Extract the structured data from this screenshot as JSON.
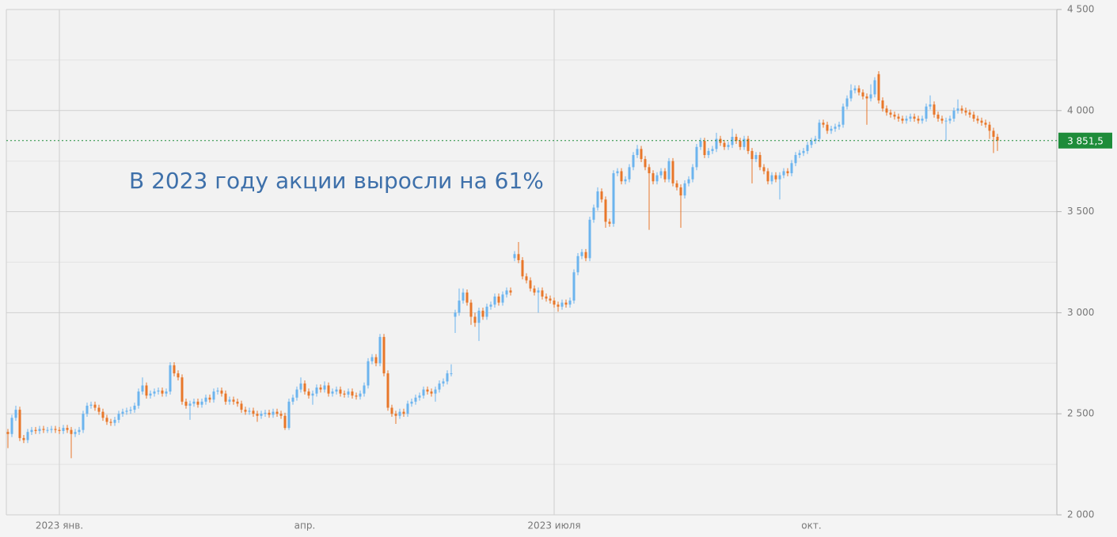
{
  "chart_data": {
    "type": "candlestick",
    "annotation": "В  2023 году акции выросли на 61%",
    "categories": [
      null,
      null,
      null,
      null,
      null,
      null,
      null,
      null,
      null,
      null,
      null,
      null,
      null,
      "2023 янв.",
      null,
      null,
      null,
      null,
      null,
      null,
      null,
      null,
      null,
      null,
      null,
      null,
      null,
      null,
      null,
      null,
      null,
      null,
      null,
      null,
      null,
      null,
      null,
      null,
      null,
      null,
      null,
      null,
      null,
      null,
      null,
      null,
      null,
      null,
      null,
      null,
      null,
      null,
      null,
      null,
      null,
      null,
      null,
      null,
      null,
      null,
      null,
      null,
      null,
      null,
      null,
      null,
      null,
      null,
      null,
      null,
      null,
      null,
      null,
      null,
      null,
      "апр.",
      null,
      null,
      null,
      null,
      null,
      null,
      null,
      null,
      null,
      null,
      null,
      null,
      null,
      null,
      null,
      null,
      null,
      null,
      null,
      null,
      null,
      null,
      null,
      null,
      null,
      null,
      null,
      null,
      null,
      null,
      null,
      null,
      null,
      null,
      null,
      null,
      null,
      null,
      null,
      null,
      null,
      null,
      null,
      null,
      null,
      null,
      null,
      null,
      null,
      null,
      null,
      null,
      null,
      null,
      null,
      null,
      null,
      null,
      null,
      null,
      null,
      null,
      "2023 июля",
      null,
      null,
      null,
      null,
      null,
      null,
      null,
      null,
      null,
      null,
      null,
      null,
      null,
      null,
      null,
      null,
      null,
      null,
      null,
      null,
      null,
      null,
      null,
      null,
      null,
      null,
      null,
      null,
      null,
      null,
      null,
      null,
      null,
      null,
      null,
      null,
      null,
      null,
      null,
      null,
      null,
      null,
      null,
      null,
      null,
      null,
      null,
      null,
      null,
      null,
      null,
      null,
      null,
      null,
      null,
      null,
      null,
      null,
      null,
      null,
      null,
      null,
      null,
      null,
      "окт.",
      null,
      null,
      null,
      null,
      null,
      null,
      null,
      null,
      null,
      null,
      null,
      null,
      null,
      null,
      null,
      null,
      null,
      null,
      null,
      null,
      null,
      null,
      null,
      null,
      null,
      null,
      null,
      null,
      null,
      null,
      null,
      null,
      null,
      null,
      null,
      null,
      null,
      null,
      null,
      null,
      null,
      null,
      null,
      null,
      null,
      null,
      null
    ],
    "xgrid_at": [
      "2023 янв.",
      "2023 июля"
    ],
    "open": [
      2410,
      2400,
      2480,
      2520,
      2380,
      2370,
      2410,
      2420,
      2415,
      2425,
      2420,
      2420,
      2425,
      2420,
      2415,
      2430,
      2420,
      2400,
      2410,
      2420,
      2500,
      2540,
      2545,
      2530,
      2510,
      2480,
      2460,
      2455,
      2470,
      2500,
      2510,
      2515,
      2520,
      2540,
      2610,
      2640,
      2590,
      2600,
      2610,
      2615,
      2600,
      2610,
      2740,
      2700,
      2680,
      2560,
      2540,
      2550,
      2560,
      2545,
      2560,
      2580,
      2570,
      2610,
      2615,
      2600,
      2560,
      2570,
      2560,
      2550,
      2520,
      2510,
      2515,
      2500,
      2490,
      2500,
      2505,
      2495,
      2510,
      2500,
      2490,
      2430,
      2560,
      2580,
      2620,
      2650,
      2610,
      2590,
      2600,
      2630,
      2620,
      2640,
      2600,
      2610,
      2620,
      2600,
      2595,
      2610,
      2590,
      2585,
      2600,
      2640,
      2760,
      2780,
      2750,
      2880,
      2700,
      2530,
      2500,
      2490,
      2510,
      2500,
      2550,
      2560,
      2580,
      2590,
      2620,
      2610,
      2600,
      2620,
      2650,
      2660,
      2700,
      2980,
      3000,
      3060,
      3100,
      3050,
      2980,
      2950,
      3010,
      2980,
      3030,
      3040,
      3080,
      3050,
      3090,
      3110,
      3270,
      3290,
      3260,
      3180,
      3160,
      3120,
      3100,
      3110,
      3080,
      3070,
      3060,
      3040,
      3030,
      3050,
      3040,
      3060,
      3200,
      3280,
      3300,
      3270,
      3460,
      3520,
      3600,
      3560,
      3450,
      3440,
      3690,
      3700,
      3650,
      3660,
      3720,
      3780,
      3810,
      3760,
      3720,
      3690,
      3650,
      3680,
      3700,
      3660,
      3750,
      3640,
      3620,
      3580,
      3640,
      3660,
      3720,
      3820,
      3850,
      3780,
      3800,
      3810,
      3860,
      3840,
      3820,
      3830,
      3870,
      3850,
      3820,
      3860,
      3800,
      3760,
      3780,
      3720,
      3700,
      3650,
      3680,
      3660,
      3680,
      3700,
      3690,
      3740,
      3780,
      3790,
      3800,
      3830,
      3850,
      3860,
      3940,
      3930,
      3900,
      3910,
      3920,
      3930,
      4020,
      4060,
      4100,
      4110,
      4090,
      4070,
      4060,
      4080,
      4180,
      4050,
      4010,
      3990,
      3980,
      3970,
      3960,
      3950,
      3960,
      3970,
      3960,
      3950,
      3960,
      4020,
      4030,
      3980,
      3960,
      3950,
      3950,
      3960,
      4000,
      4010,
      4000,
      3990,
      3980,
      3960,
      3950,
      3940,
      3930,
      3900,
      3870
    ],
    "high": [
      2425,
      2495,
      2540,
      2535,
      2395,
      2425,
      2435,
      2435,
      2440,
      2440,
      2435,
      2440,
      2440,
      2435,
      2445,
      2445,
      2435,
      2425,
      2435,
      2515,
      2555,
      2560,
      2560,
      2545,
      2525,
      2495,
      2475,
      2485,
      2515,
      2525,
      2530,
      2535,
      2555,
      2625,
      2680,
      2655,
      2615,
      2625,
      2630,
      2630,
      2625,
      2755,
      2755,
      2715,
      2695,
      2575,
      2565,
      2575,
      2575,
      2575,
      2595,
      2595,
      2625,
      2630,
      2630,
      2615,
      2585,
      2585,
      2575,
      2565,
      2535,
      2530,
      2530,
      2515,
      2515,
      2520,
      2520,
      2525,
      2525,
      2515,
      2505,
      2575,
      2595,
      2635,
      2680,
      2665,
      2625,
      2615,
      2645,
      2645,
      2660,
      2655,
      2625,
      2635,
      2635,
      2615,
      2625,
      2625,
      2605,
      2615,
      2655,
      2775,
      2795,
      2795,
      2895,
      2895,
      2715,
      2545,
      2515,
      2525,
      2525,
      2565,
      2575,
      2595,
      2605,
      2635,
      2635,
      2625,
      2635,
      2665,
      2675,
      2715,
      2745,
      3015,
      3120,
      3120,
      3115,
      3065,
      3000,
      3025,
      3025,
      3045,
      3055,
      3095,
      3095,
      3105,
      3125,
      3125,
      3305,
      3350,
      3275,
      3195,
      3175,
      3135,
      3125,
      3125,
      3095,
      3085,
      3075,
      3055,
      3065,
      3065,
      3075,
      3215,
      3295,
      3315,
      3315,
      3475,
      3535,
      3620,
      3615,
      3575,
      3465,
      3705,
      3715,
      3715,
      3675,
      3735,
      3795,
      3830,
      3825,
      3775,
      3735,
      3705,
      3695,
      3715,
      3715,
      3765,
      3765,
      3655,
      3635,
      3655,
      3675,
      3735,
      3835,
      3865,
      3865,
      3815,
      3825,
      3890,
      3875,
      3855,
      3845,
      3910,
      3885,
      3865,
      3875,
      3875,
      3815,
      3795,
      3795,
      3735,
      3715,
      3695,
      3695,
      3695,
      3715,
      3715,
      3755,
      3795,
      3805,
      3815,
      3845,
      3865,
      3875,
      3955,
      3955,
      3945,
      3925,
      3935,
      3945,
      4035,
      4075,
      4130,
      4125,
      4125,
      4105,
      4085,
      4130,
      4165,
      4195,
      4065,
      4025,
      4005,
      3995,
      3985,
      3975,
      3975,
      3985,
      3985,
      3975,
      3975,
      4035,
      4075,
      4045,
      3995,
      3975,
      3965,
      3975,
      4015,
      4055,
      4025,
      4015,
      4005,
      3995,
      3975,
      3965,
      3955,
      3945,
      3915,
      3885
    ],
    "low": [
      2330,
      2385,
      2465,
      2365,
      2355,
      2355,
      2395,
      2400,
      2400,
      2405,
      2405,
      2405,
      2405,
      2400,
      2400,
      2405,
      2280,
      2385,
      2395,
      2405,
      2485,
      2525,
      2515,
      2495,
      2465,
      2445,
      2440,
      2440,
      2455,
      2485,
      2495,
      2500,
      2505,
      2525,
      2595,
      2575,
      2575,
      2585,
      2595,
      2585,
      2585,
      2595,
      2685,
      2665,
      2545,
      2525,
      2470,
      2535,
      2530,
      2530,
      2545,
      2555,
      2555,
      2595,
      2585,
      2545,
      2545,
      2545,
      2535,
      2505,
      2495,
      2495,
      2485,
      2460,
      2475,
      2485,
      2480,
      2480,
      2485,
      2475,
      2420,
      2420,
      2545,
      2565,
      2605,
      2595,
      2575,
      2545,
      2585,
      2605,
      2605,
      2585,
      2585,
      2595,
      2585,
      2580,
      2580,
      2575,
      2570,
      2570,
      2585,
      2625,
      2745,
      2735,
      2735,
      2685,
      2515,
      2485,
      2450,
      2475,
      2485,
      2485,
      2535,
      2545,
      2565,
      2575,
      2595,
      2585,
      2560,
      2605,
      2635,
      2645,
      2685,
      2900,
      2985,
      3045,
      3035,
      2940,
      2930,
      2860,
      2965,
      2965,
      3015,
      3025,
      3035,
      3035,
      3075,
      3085,
      3255,
      3245,
      3165,
      3145,
      3105,
      3085,
      3000,
      3065,
      3055,
      3045,
      3025,
      3005,
      3015,
      3025,
      3025,
      3045,
      3185,
      3265,
      3255,
      3255,
      3445,
      3505,
      3545,
      3420,
      3425,
      3425,
      3675,
      3635,
      3635,
      3645,
      3705,
      3765,
      3745,
      3705,
      3410,
      3635,
      3635,
      3665,
      3645,
      3645,
      3625,
      3605,
      3420,
      3565,
      3625,
      3645,
      3705,
      3805,
      3765,
      3765,
      3785,
      3795,
      3825,
      3805,
      3805,
      3815,
      3835,
      3805,
      3805,
      3785,
      3640,
      3745,
      3705,
      3685,
      3635,
      3635,
      3645,
      3560,
      3665,
      3675,
      3675,
      3725,
      3765,
      3775,
      3785,
      3815,
      3835,
      3845,
      3915,
      3885,
      3885,
      3895,
      3905,
      3915,
      4005,
      4045,
      4085,
      4075,
      4055,
      3930,
      4045,
      4065,
      4035,
      3995,
      3975,
      3965,
      3955,
      3945,
      3935,
      3935,
      3945,
      3945,
      3935,
      3935,
      3945,
      4005,
      3965,
      3945,
      3935,
      3850,
      3935,
      3945,
      3985,
      3985,
      3975,
      3965,
      3945,
      3935,
      3925,
      3915,
      3860,
      3790,
      3800
    ],
    "close": [
      2400,
      2480,
      2520,
      2380,
      2370,
      2410,
      2420,
      2415,
      2425,
      2420,
      2420,
      2425,
      2420,
      2415,
      2430,
      2420,
      2400,
      2410,
      2420,
      2500,
      2540,
      2545,
      2530,
      2510,
      2480,
      2460,
      2455,
      2470,
      2500,
      2510,
      2515,
      2520,
      2540,
      2610,
      2640,
      2590,
      2600,
      2610,
      2615,
      2600,
      2610,
      2740,
      2700,
      2680,
      2560,
      2540,
      2550,
      2560,
      2545,
      2560,
      2580,
      2570,
      2610,
      2615,
      2600,
      2560,
      2570,
      2560,
      2550,
      2520,
      2510,
      2515,
      2500,
      2490,
      2500,
      2505,
      2495,
      2510,
      2500,
      2490,
      2430,
      2560,
      2580,
      2620,
      2650,
      2610,
      2590,
      2600,
      2630,
      2620,
      2640,
      2600,
      2610,
      2620,
      2600,
      2595,
      2610,
      2590,
      2585,
      2600,
      2640,
      2760,
      2780,
      2750,
      2880,
      2700,
      2530,
      2500,
      2490,
      2510,
      2500,
      2550,
      2560,
      2580,
      2590,
      2620,
      2610,
      2600,
      2620,
      2650,
      2660,
      2700,
      2700,
      3000,
      3060,
      3100,
      3050,
      2980,
      2950,
      3010,
      2980,
      3030,
      3040,
      3080,
      3050,
      3090,
      3110,
      3100,
      3290,
      3260,
      3180,
      3160,
      3120,
      3100,
      3110,
      3080,
      3070,
      3060,
      3040,
      3030,
      3050,
      3040,
      3060,
      3200,
      3280,
      3300,
      3270,
      3460,
      3520,
      3600,
      3560,
      3450,
      3440,
      3690,
      3700,
      3650,
      3660,
      3720,
      3780,
      3810,
      3760,
      3720,
      3690,
      3650,
      3680,
      3700,
      3660,
      3750,
      3640,
      3620,
      3580,
      3640,
      3660,
      3720,
      3820,
      3850,
      3780,
      3800,
      3810,
      3860,
      3840,
      3820,
      3830,
      3870,
      3850,
      3820,
      3860,
      3800,
      3760,
      3780,
      3720,
      3700,
      3650,
      3680,
      3660,
      3680,
      3700,
      3690,
      3740,
      3780,
      3790,
      3800,
      3830,
      3850,
      3860,
      3940,
      3930,
      3900,
      3910,
      3920,
      3930,
      4020,
      4060,
      4100,
      4110,
      4090,
      4070,
      4060,
      4080,
      4150,
      4050,
      4010,
      3990,
      3980,
      3970,
      3960,
      3950,
      3960,
      3970,
      3960,
      3950,
      3960,
      4020,
      4030,
      3980,
      3960,
      3950,
      3950,
      3960,
      4000,
      4010,
      4000,
      3990,
      3980,
      3960,
      3950,
      3940,
      3930,
      3900,
      3870,
      3851.5
    ],
    "up_color": "#6cb4ee",
    "down_color": "#e8772a",
    "ylim": [
      2000,
      4500
    ],
    "yticks": [
      {
        "value": 2000,
        "label": "2 000"
      },
      {
        "value": 2500,
        "label": "2 500"
      },
      {
        "value": 3000,
        "label": "3 000"
      },
      {
        "value": 3500,
        "label": "3 500"
      },
      {
        "value": 4000,
        "label": "4 000"
      },
      {
        "value": 4500,
        "label": "4 500"
      }
    ],
    "yminor": [
      2250,
      2750,
      3250,
      3750,
      4250
    ],
    "grid": true,
    "last_price": {
      "value": 3851.5,
      "label": "3 851,5",
      "color": "#1e8c3a"
    }
  }
}
